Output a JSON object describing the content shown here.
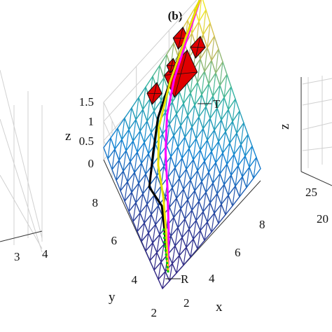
{
  "chart_data": [
    {
      "type": "surface",
      "panel": "left (partial)",
      "title": "",
      "tick_labels": [
        "4",
        "3"
      ]
    },
    {
      "type": "surface",
      "panel": "center",
      "title": "(b)",
      "xlabel": "x",
      "ylabel": "y",
      "zlabel": "z",
      "xlim": [
        2,
        8
      ],
      "ylim": [
        2,
        9
      ],
      "zlim": [
        0,
        1.5
      ],
      "x_ticks": [
        "2",
        "4",
        "6",
        "8"
      ],
      "y_ticks": [
        "2",
        "4",
        "6",
        "8"
      ],
      "z_ticks": [
        "0",
        "0.5",
        "1",
        "1.5"
      ],
      "grid": true,
      "annotations": [
        {
          "text": "T",
          "x": 8,
          "y": 9,
          "z": 1.45
        },
        {
          "text": "R",
          "x": 2.5,
          "y": 2.3,
          "z": 0.05
        }
      ],
      "surface_colormap": "parula",
      "obstacle_color": "#dd0000",
      "paths": [
        {
          "color": "#000000",
          "style": "solid",
          "points": [
            [
              2.5,
              2.3
            ],
            [
              3.0,
              3.6
            ],
            [
              3.4,
              4.8
            ],
            [
              3.2,
              5.9
            ],
            [
              3.9,
              6.8
            ],
            [
              4.6,
              7.6
            ],
            [
              6.0,
              8.3
            ],
            [
              8.0,
              9.0
            ]
          ]
        },
        {
          "color": "#ff00ff",
          "style": "solid",
          "points": [
            [
              2.5,
              2.3
            ],
            [
              3.3,
              3.8
            ],
            [
              3.9,
              5.1
            ],
            [
              4.4,
              6.3
            ],
            [
              5.0,
              7.3
            ],
            [
              5.8,
              8.0
            ],
            [
              6.8,
              8.5
            ],
            [
              8.0,
              9.0
            ]
          ]
        },
        {
          "color": "#e8e000",
          "style": "solid",
          "points": [
            [
              2.5,
              2.3
            ],
            [
              3.1,
              3.7
            ],
            [
              3.6,
              5.0
            ],
            [
              3.9,
              6.2
            ],
            [
              4.5,
              7.3
            ],
            [
              5.6,
              8.1
            ],
            [
              6.8,
              8.6
            ],
            [
              8.0,
              9.0
            ]
          ]
        },
        {
          "color": "#00cc00",
          "style": "dotted",
          "points": [
            [
              2.5,
              2.3
            ],
            [
              2.7,
              2.9
            ],
            [
              2.9,
              3.5
            ],
            [
              3.1,
              4.0
            ]
          ]
        }
      ]
    },
    {
      "type": "surface",
      "panel": "right (partial)",
      "zlabel": "z",
      "tick_labels": [
        "25",
        "20"
      ]
    }
  ]
}
